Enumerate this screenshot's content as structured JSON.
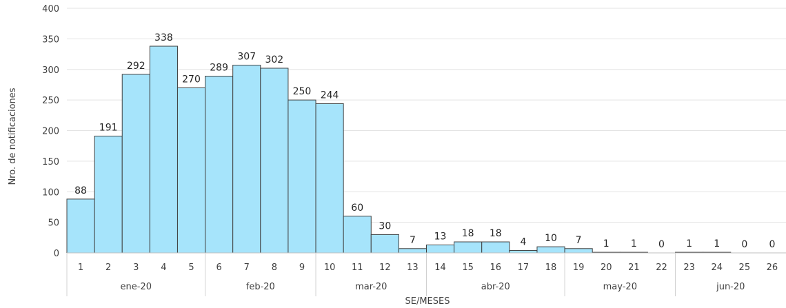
{
  "chart_data": {
    "type": "bar",
    "categories": [
      "1",
      "2",
      "3",
      "4",
      "5",
      "6",
      "7",
      "8",
      "9",
      "10",
      "11",
      "12",
      "13",
      "14",
      "15",
      "16",
      "17",
      "18",
      "19",
      "20",
      "21",
      "22",
      "23",
      "24",
      "25",
      "26"
    ],
    "values": [
      88,
      191,
      292,
      338,
      270,
      289,
      307,
      302,
      250,
      244,
      60,
      30,
      7,
      13,
      18,
      18,
      4,
      10,
      7,
      1,
      1,
      0,
      1,
      1,
      0,
      0
    ],
    "month_groups": [
      {
        "label": "ene-20",
        "weeks": [
          "1",
          "2",
          "3",
          "4",
          "5"
        ]
      },
      {
        "label": "feb-20",
        "weeks": [
          "6",
          "7",
          "8",
          "9"
        ]
      },
      {
        "label": "mar-20",
        "weeks": [
          "10",
          "11",
          "12",
          "13"
        ]
      },
      {
        "label": "abr-20",
        "weeks": [
          "14",
          "15",
          "16",
          "17",
          "18"
        ]
      },
      {
        "label": "may-20",
        "weeks": [
          "19",
          "20",
          "21",
          "22"
        ]
      },
      {
        "label": "jun-20",
        "weeks": [
          "23",
          "24",
          "25",
          "26"
        ]
      }
    ],
    "yticks": [
      0,
      50,
      100,
      150,
      200,
      250,
      300,
      350,
      400
    ],
    "ylim": [
      0,
      400
    ],
    "xlabel": "SE/MESES",
    "ylabel": "Nro. de notificaciones",
    "bar_color": "#a6e4fb",
    "bar_edge_color": "#404040",
    "grid": true
  }
}
